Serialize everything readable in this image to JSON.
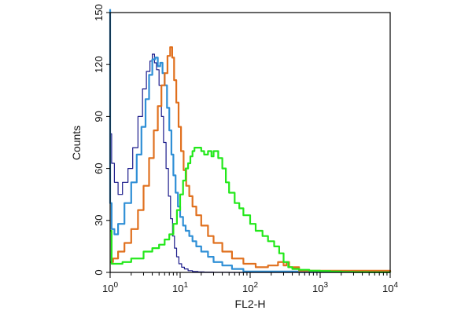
{
  "chart_data": {
    "type": "line",
    "title": "",
    "xlabel": "FL2-H",
    "ylabel": "Counts",
    "x_scale": "log",
    "xlim": [
      1,
      10000
    ],
    "ylim": [
      0,
      150
    ],
    "grid": false,
    "legend": "none",
    "y_ticks": [
      "0",
      "30",
      "60",
      "90",
      "120",
      "150"
    ],
    "x_ticks": [
      {
        "base": "10",
        "exp": "0"
      },
      {
        "base": "10",
        "exp": "1"
      },
      {
        "base": "10",
        "exp": "2"
      },
      {
        "base": "10",
        "exp": "3"
      },
      {
        "base": "10",
        "exp": "4"
      }
    ],
    "series": [
      {
        "color": "#1a1a8a",
        "width": 1.2,
        "x": [
          1.0,
          1.0,
          1.05,
          1.15,
          1.3,
          1.5,
          1.8,
          2.1,
          2.5,
          2.9,
          3.3,
          3.7,
          4.0,
          4.3,
          4.6,
          5.0,
          5.4,
          5.8,
          6.3,
          6.8,
          7.3,
          7.8,
          8.3,
          8.9,
          9.6,
          10.5,
          11.5,
          13,
          15,
          18,
          22,
          30,
          50,
          100,
          10000
        ],
        "y": [
          148,
          80,
          63,
          52,
          45,
          52,
          60,
          72,
          90,
          106,
          116,
          122,
          126,
          121,
          117,
          108,
          90,
          75,
          60,
          44,
          31,
          21,
          14,
          9,
          5,
          3,
          2,
          1,
          0.5,
          0.3,
          0.2,
          0.1,
          0,
          0,
          0
        ]
      },
      {
        "color": "#2f8fd6",
        "width": 2.2,
        "x": [
          1.0,
          1.0,
          1.05,
          1.15,
          1.3,
          1.6,
          2.0,
          2.4,
          2.8,
          3.2,
          3.6,
          4.0,
          4.4,
          4.8,
          5.2,
          5.6,
          6.0,
          6.5,
          7.0,
          7.5,
          8.0,
          8.6,
          9.3,
          10,
          11,
          12,
          13.5,
          15,
          17,
          20,
          25,
          30,
          40,
          55,
          80,
          10000
        ],
        "y": [
          152,
          40,
          25,
          22,
          28,
          40,
          52,
          68,
          84,
          100,
          114,
          123,
          124,
          119,
          121,
          115,
          108,
          95,
          82,
          68,
          56,
          46,
          38,
          32,
          27,
          24,
          21,
          18,
          15,
          12,
          9,
          6,
          4,
          2,
          0.5,
          0
        ]
      },
      {
        "color": "#e0701e",
        "width": 2.2,
        "x": [
          1.0,
          1.1,
          1.3,
          1.6,
          2.0,
          2.5,
          3.0,
          3.6,
          4.2,
          4.8,
          5.4,
          6.0,
          6.6,
          7.2,
          7.7,
          8.2,
          8.8,
          9.5,
          10.3,
          11.2,
          12.2,
          13.5,
          15,
          17,
          20,
          25,
          30,
          40,
          55,
          80,
          120,
          180,
          250,
          300,
          330,
          360,
          500,
          10000
        ],
        "y": [
          6,
          8,
          12,
          17,
          25,
          36,
          50,
          66,
          82,
          96,
          108,
          115,
          125,
          130,
          124,
          111,
          98,
          84,
          70,
          59,
          50,
          44,
          38,
          33,
          27,
          21,
          17,
          12,
          8,
          5,
          3,
          4,
          6,
          4,
          6,
          3,
          1,
          0
        ]
      },
      {
        "color": "#22e81a",
        "width": 2.2,
        "x": [
          1.0,
          1.05,
          1.5,
          2.0,
          3.0,
          4.0,
          5.0,
          6.0,
          7.0,
          8.0,
          9.0,
          10,
          11,
          12,
          13,
          14,
          15,
          16,
          18,
          20,
          22,
          25,
          28,
          30,
          35,
          40,
          45,
          50,
          60,
          70,
          80,
          100,
          120,
          150,
          180,
          220,
          260,
          300,
          350,
          400,
          500,
          700,
          1000,
          1400,
          2000,
          3000,
          5000,
          10000
        ],
        "y": [
          24,
          5,
          6,
          8,
          12,
          14,
          16,
          19,
          22,
          28,
          36,
          45,
          53,
          60,
          63,
          67,
          70,
          72,
          72,
          70,
          68,
          70,
          67,
          70,
          66,
          60,
          52,
          46,
          40,
          37,
          33,
          28,
          24,
          21,
          18,
          15,
          11,
          6,
          3,
          2,
          1.5,
          1,
          0.8,
          0.5,
          0.3,
          0.2,
          0.1,
          0
        ]
      }
    ]
  }
}
